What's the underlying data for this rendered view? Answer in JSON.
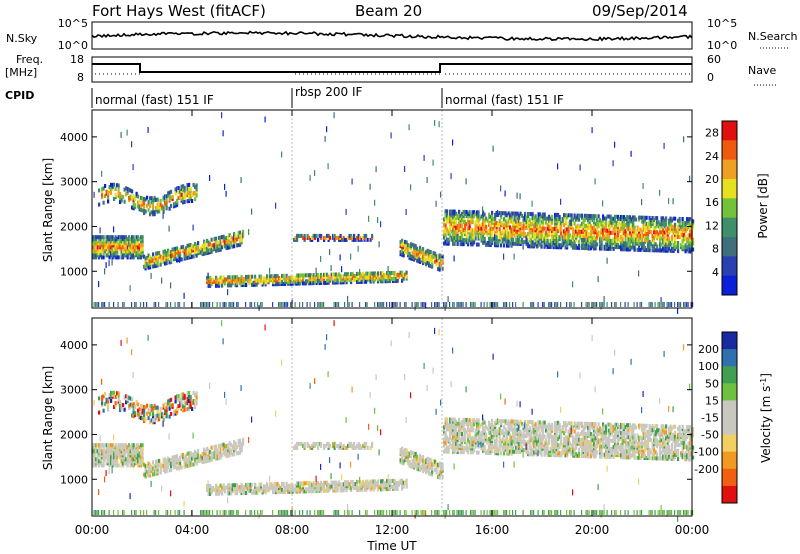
{
  "header": {
    "title": "Fort Hays West (fitACF)",
    "beam": "Beam 20",
    "date": "09/Sep/2014"
  },
  "noise_panel": {
    "left_label": "N.Sky",
    "left_ticks": [
      "10^5",
      "10^0"
    ],
    "right_label": "N.Search",
    "right_ticks": [
      "10^5",
      "10^0"
    ]
  },
  "freq_panel": {
    "left_label_line1": "Freq.",
    "left_label_line2": "[MHz]",
    "left_ticks": [
      "18",
      "8"
    ],
    "right_label": "Nave",
    "right_ticks": [
      "60",
      "0"
    ],
    "cpid_label": "CPID",
    "modes": [
      "normal (fast) 151 IF",
      "rbsp 200 IF",
      "normal (fast) 151 IF"
    ]
  },
  "colors": {
    "power": [
      "#0a1fd8",
      "#2a3fb0",
      "#3f6f7a",
      "#3f8f6a",
      "#73c23a",
      "#e6e020",
      "#f0a020",
      "#f05a10",
      "#e01010"
    ],
    "velocity": [
      "#e01010",
      "#f06010",
      "#f09a20",
      "#f0d060",
      "#c8c8c0",
      "#c8c8c0",
      "#70c040",
      "#40a050",
      "#3070b0",
      "#1a2aa0"
    ]
  },
  "chart_data": [
    {
      "type": "heatmap",
      "name": "power",
      "xlabel": "",
      "ylabel": "Slant Range [km]",
      "xlim": [
        0,
        24
      ],
      "ylim": [
        180,
        4600
      ],
      "yticks": [
        "1000",
        "2000",
        "3000",
        "4000"
      ],
      "colorbar": {
        "label": "Power [dB]",
        "ticks": [
          "4",
          "8",
          "12",
          "16",
          "20",
          "24",
          "28"
        ],
        "range": [
          0,
          30
        ]
      },
      "mode_changes_hours": [
        8.0,
        14.0
      ]
    },
    {
      "type": "heatmap",
      "name": "velocity",
      "xlabel": "Time UT",
      "ylabel": "Slant Range [km]",
      "xlim": [
        0,
        24
      ],
      "ylim": [
        180,
        4600
      ],
      "xticks": [
        "00:00",
        "04:00",
        "08:00",
        "12:00",
        "16:00",
        "20:00",
        "00:00"
      ],
      "yticks": [
        "1000",
        "2000",
        "3000",
        "4000"
      ],
      "colorbar": {
        "label": "Velocity [m s^-1]",
        "ticks": [
          "200",
          "100",
          "50",
          "15",
          "-15",
          "-50",
          "-100",
          "-200"
        ],
        "range": [
          -250,
          250
        ]
      },
      "mode_changes_hours": [
        8.0,
        14.0
      ]
    }
  ]
}
